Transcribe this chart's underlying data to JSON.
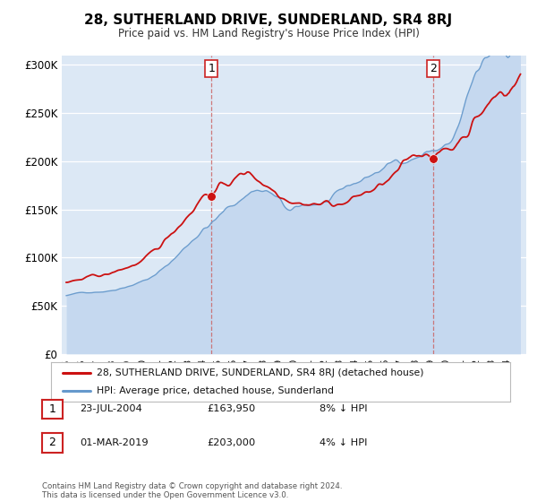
{
  "title": "28, SUTHERLAND DRIVE, SUNDERLAND, SR4 8RJ",
  "subtitle": "Price paid vs. HM Land Registry's House Price Index (HPI)",
  "legend_label_red": "28, SUTHERLAND DRIVE, SUNDERLAND, SR4 8RJ (detached house)",
  "legend_label_blue": "HPI: Average price, detached house, Sunderland",
  "marker1_date_num": 2004.56,
  "marker1_label": "1",
  "marker1_price": 163950,
  "marker1_text": "23-JUL-2004",
  "marker1_price_text": "£163,950",
  "marker1_hpi_text": "8% ↓ HPI",
  "marker2_date_num": 2019.17,
  "marker2_label": "2",
  "marker2_price": 203000,
  "marker2_text": "01-MAR-2019",
  "marker2_price_text": "£203,000",
  "marker2_hpi_text": "4% ↓ HPI",
  "copyright_text": "Contains HM Land Registry data © Crown copyright and database right 2024.\nThis data is licensed under the Open Government Licence v3.0.",
  "ylim": [
    0,
    310000
  ],
  "xlim_start": 1994.7,
  "xlim_end": 2025.3,
  "yticks": [
    0,
    50000,
    100000,
    150000,
    200000,
    250000,
    300000
  ],
  "ytick_labels": [
    "£0",
    "£50K",
    "£100K",
    "£150K",
    "£200K",
    "£250K",
    "£300K"
  ],
  "plot_bg_color": "#dce8f5",
  "red_color": "#cc1111",
  "blue_color": "#6699cc",
  "blue_fill_color": "#c5d8ef",
  "marker_color": "#cc1111",
  "vline_color": "#cc6666"
}
